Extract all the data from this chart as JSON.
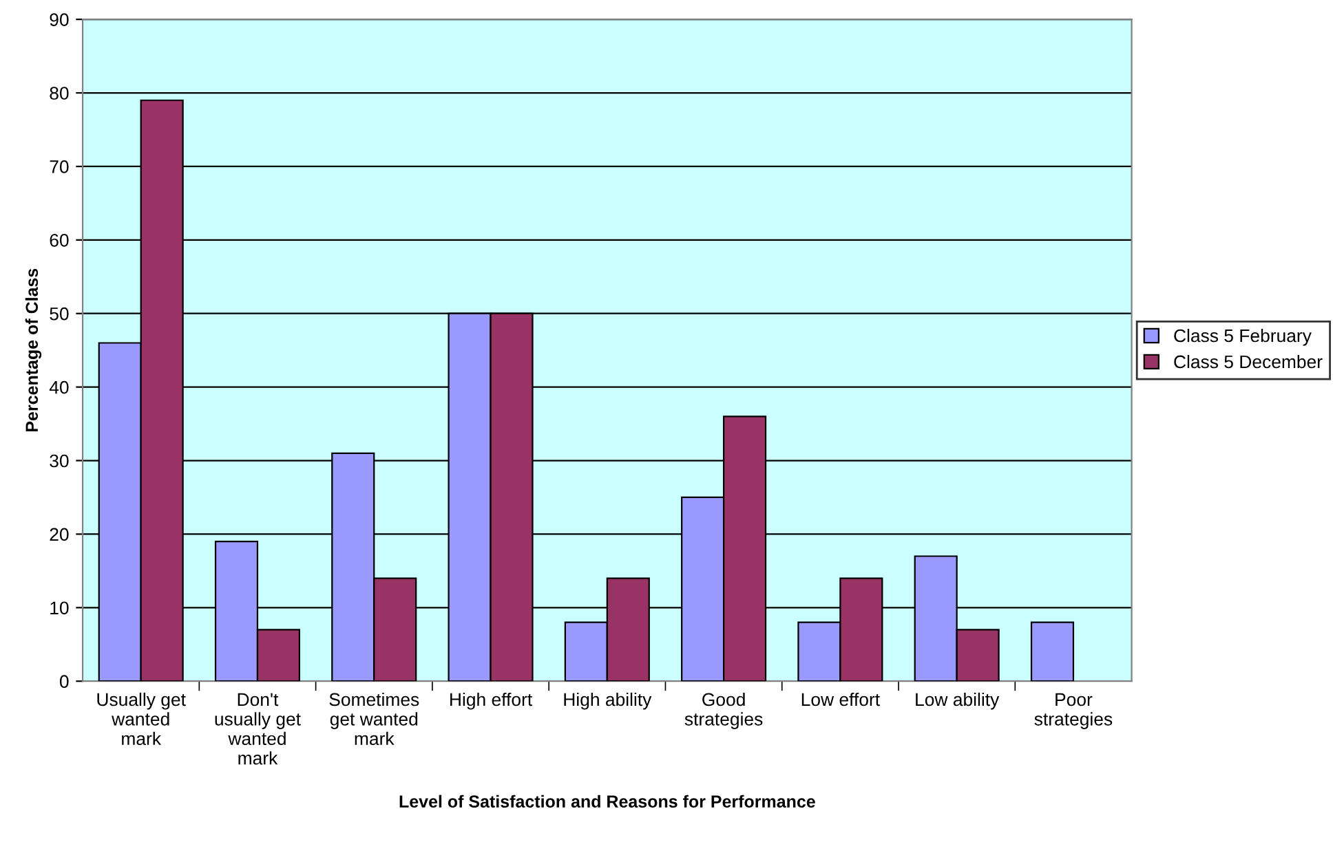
{
  "chart_data": {
    "type": "bar",
    "xlabel": "Level of Satisfaction and Reasons for Performance",
    "ylabel": "Percentage of Class",
    "categories": [
      "Usually get\nwanted\nmark",
      "Don't\nusually get\nwanted\nmark",
      "Sometimes\nget wanted\nmark",
      "High effort",
      "High ability",
      "Good\nstrategies",
      "Low effort",
      "Low ability",
      "Poor\nstrategies"
    ],
    "series": [
      {
        "name": "Class 5 February",
        "color": "#9999ff",
        "values": [
          46,
          19,
          31,
          50,
          8,
          25,
          8,
          17,
          8
        ]
      },
      {
        "name": "Class 5 December",
        "color": "#993366",
        "values": [
          79,
          7,
          14,
          50,
          14,
          36,
          14,
          7,
          0
        ]
      }
    ],
    "ylim": [
      0,
      90
    ],
    "yticks": [
      0,
      10,
      20,
      30,
      40,
      50,
      60,
      70,
      80,
      90
    ],
    "grid": "y",
    "legend": "right"
  }
}
